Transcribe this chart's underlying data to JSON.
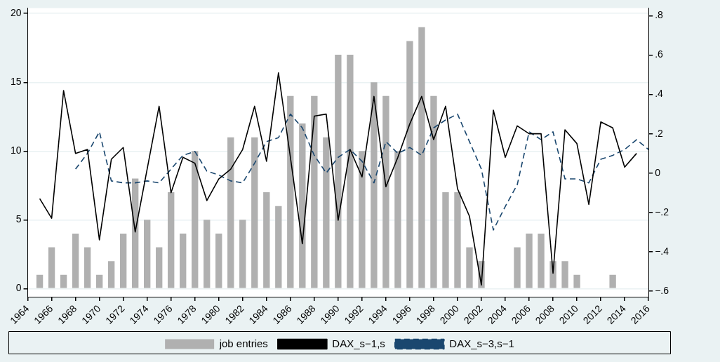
{
  "chart_data": {
    "type": "bar",
    "grid": "y",
    "legend": "bottom",
    "marker": "none",
    "xlim": [
      1964,
      2016
    ],
    "xticks": [
      1964,
      1966,
      1968,
      1970,
      1972,
      1974,
      1976,
      1978,
      1980,
      1982,
      1984,
      1986,
      1988,
      1990,
      1992,
      1994,
      1996,
      1998,
      2000,
      2002,
      2004,
      2006,
      2008,
      2010,
      2012,
      2014,
      2016
    ],
    "ylim": [
      -0.6,
      20.4
    ],
    "yticks": [
      0,
      5,
      10,
      15,
      20
    ],
    "y2lim": [
      -0.63,
      0.84
    ],
    "y2ticks": [
      {
        "value": -0.6,
        "label": "−.6"
      },
      {
        "value": -0.4,
        "label": "−.4"
      },
      {
        "value": -0.2,
        "label": "−.2"
      },
      {
        "value": 0,
        "label": "0"
      },
      {
        "value": 0.2,
        "label": ".2"
      },
      {
        "value": 0.4,
        "label": ".4"
      },
      {
        "value": 0.6,
        "label": ".6"
      },
      {
        "value": 0.8,
        "label": ".8"
      }
    ],
    "series": [
      {
        "name": "job entries",
        "color": "#b0b0b0",
        "x": [
          1965,
          1966,
          1967,
          1968,
          1969,
          1970,
          1971,
          1972,
          1973,
          1974,
          1975,
          1976,
          1977,
          1978,
          1979,
          1980,
          1981,
          1982,
          1983,
          1984,
          1985,
          1986,
          1987,
          1988,
          1989,
          1990,
          1991,
          1992,
          1993,
          1994,
          1995,
          1996,
          1997,
          1998,
          1999,
          2000,
          2001,
          2002,
          2003,
          2004,
          2005,
          2006,
          2007,
          2008,
          2009,
          2010,
          2011,
          2012,
          2013,
          2014,
          2015
        ],
        "values": [
          1,
          3,
          1,
          4,
          3,
          1,
          2,
          4,
          8,
          5,
          3,
          7,
          4,
          10,
          5,
          4,
          11,
          5,
          11,
          7,
          6,
          14,
          12,
          14,
          11,
          17,
          17,
          10,
          15,
          14,
          10,
          18,
          19,
          14,
          7,
          7,
          3,
          2,
          0,
          0,
          3,
          4,
          4,
          2,
          2,
          1,
          0,
          0,
          1,
          0,
          0
        ]
      },
      {
        "name": "DAX_s−1,s",
        "type": "line",
        "axis": "y2",
        "color": "#000000",
        "line_style": "solid",
        "x": [
          1965,
          1966,
          1967,
          1968,
          1969,
          1970,
          1971,
          1972,
          1973,
          1974,
          1975,
          1976,
          1977,
          1978,
          1979,
          1980,
          1981,
          1982,
          1983,
          1984,
          1985,
          1986,
          1987,
          1988,
          1989,
          1990,
          1991,
          1992,
          1993,
          1994,
          1995,
          1996,
          1997,
          1998,
          1999,
          2000,
          2001,
          2002,
          2003,
          2004,
          2005,
          2006,
          2007,
          2008,
          2009,
          2010,
          2011,
          2012,
          2013,
          2014,
          2015
        ],
        "values": [
          -0.13,
          -0.23,
          0.42,
          0.1,
          0.12,
          -0.34,
          0.07,
          0.13,
          -0.3,
          0.02,
          0.34,
          -0.1,
          0.08,
          0.05,
          -0.14,
          -0.03,
          0.02,
          0.12,
          0.34,
          0.06,
          0.51,
          0.08,
          -0.36,
          0.29,
          0.3,
          -0.24,
          0.12,
          -0.02,
          0.39,
          -0.07,
          0.08,
          0.25,
          0.39,
          0.17,
          0.34,
          -0.08,
          -0.22,
          -0.57,
          0.32,
          0.08,
          0.24,
          0.2,
          0.2,
          -0.51,
          0.22,
          0.15,
          -0.16,
          0.26,
          0.23,
          0.03,
          0.1
        ]
      },
      {
        "name": "DAX_s−3,s−1",
        "type": "line",
        "axis": "y2",
        "color": "#1a476f",
        "line_style": "dashed",
        "x": [
          1968,
          1969,
          1970,
          1971,
          1972,
          1973,
          1974,
          1975,
          1976,
          1977,
          1978,
          1979,
          1980,
          1981,
          1982,
          1983,
          1984,
          1985,
          1986,
          1987,
          1988,
          1989,
          1990,
          1991,
          1992,
          1993,
          1994,
          1995,
          1996,
          1997,
          1998,
          1999,
          2000,
          2001,
          2002,
          2003,
          2004,
          2005,
          2006,
          2007,
          2008,
          2009,
          2010,
          2011,
          2012,
          2013,
          2014,
          2015,
          2016
        ],
        "values": [
          0.02,
          0.1,
          0.21,
          -0.04,
          -0.05,
          -0.05,
          -0.04,
          -0.05,
          0.02,
          0.09,
          0.11,
          0.01,
          -0.01,
          -0.04,
          -0.05,
          0.05,
          0.16,
          0.18,
          0.3,
          0.23,
          0.09,
          0,
          0.08,
          0.12,
          0.06,
          -0.05,
          0.16,
          0.1,
          0.13,
          0.09,
          0.23,
          0.27,
          0.3,
          0.16,
          0.02,
          -0.29,
          -0.17,
          -0.06,
          0.21,
          0.17,
          0.21,
          -0.03,
          -0.03,
          -0.05,
          0.07,
          0.09,
          0.12,
          0.17,
          0.12
        ]
      }
    ]
  }
}
